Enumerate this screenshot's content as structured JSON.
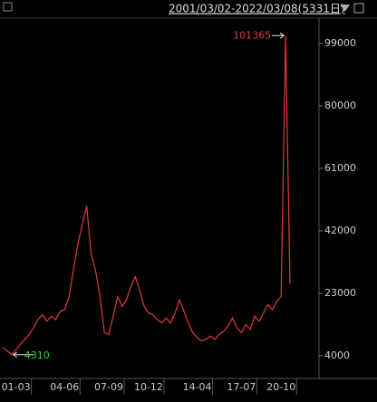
{
  "chart_data": {
    "type": "line",
    "subtitle": "2001/03/02-2022/03/08(5331日)",
    "categories": [
      null,
      null,
      null,
      "01-03",
      null,
      null,
      null,
      null,
      null,
      null,
      null,
      null,
      null,
      null,
      "04-06",
      null,
      null,
      null,
      null,
      null,
      null,
      null,
      null,
      null,
      "07-09",
      null,
      null,
      null,
      null,
      null,
      null,
      null,
      null,
      "10-12",
      null,
      null,
      null,
      null,
      null,
      null,
      null,
      null,
      null,
      null,
      "14-04",
      null,
      null,
      null,
      null,
      null,
      null,
      null,
      null,
      null,
      "17-07",
      null,
      null,
      null,
      null,
      null,
      null,
      null,
      null,
      "20-10",
      null,
      null
    ],
    "series": [
      {
        "color": "#e03a3a",
        "values": [
          6500,
          5500,
          4310,
          5800,
          7500,
          9000,
          10500,
          12500,
          15000,
          16500,
          14500,
          16000,
          15000,
          17500,
          18000,
          22000,
          30000,
          38000,
          44000,
          49500,
          35000,
          30000,
          22000,
          11000,
          10500,
          16000,
          22000,
          19000,
          21000,
          25000,
          28000,
          24000,
          19000,
          17000,
          16500,
          15000,
          14000,
          15500,
          14000,
          17000,
          21000,
          17500,
          14000,
          11000,
          9500,
          8500,
          9000,
          10000,
          9000,
          10500,
          11500,
          13000,
          15500,
          12500,
          11000,
          13500,
          12000,
          16000,
          14500,
          17000,
          19500,
          18000,
          20500,
          22000,
          101365,
          26000
        ]
      }
    ],
    "ylim": [
      -2900,
      105300
    ],
    "yticks": [
      4000,
      23000,
      42000,
      61000,
      80000,
      99000
    ]
  }
}
